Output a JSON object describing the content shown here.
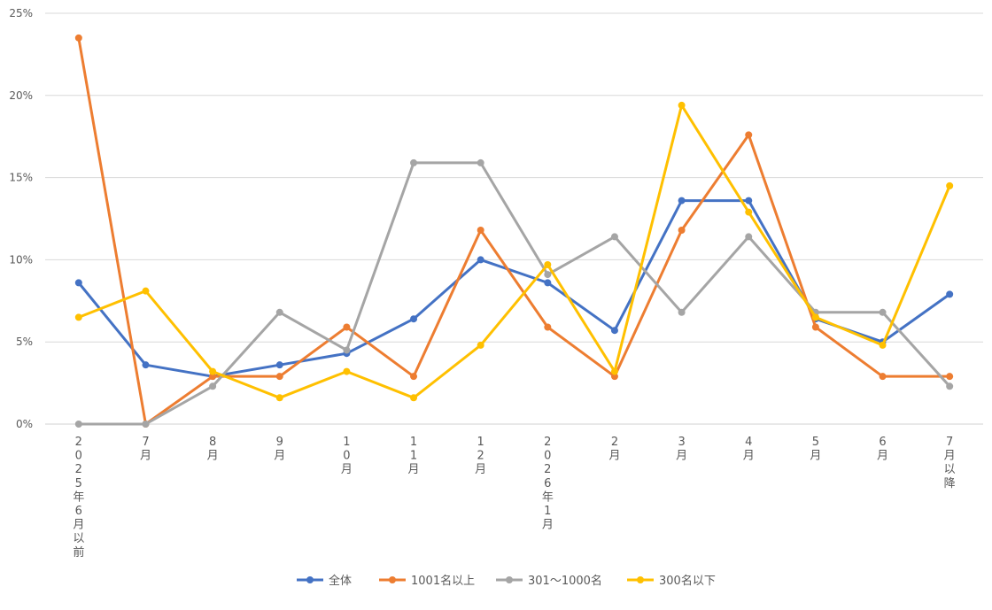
{
  "chart_data": {
    "type": "line",
    "title": "",
    "xlabel": "",
    "ylabel": "",
    "ylim": [
      0,
      25
    ],
    "yticks": [
      "0%",
      "5%",
      "10%",
      "15%",
      "20%",
      "25%"
    ],
    "ytick_values": [
      0,
      5,
      10,
      15,
      20,
      25
    ],
    "grid": true,
    "legend_position": "bottom",
    "categories": [
      "2025年6月以前",
      "7月",
      "8月",
      "9月",
      "10月",
      "11月",
      "12月",
      "2026年1月",
      "2月",
      "3月",
      "4月",
      "5月",
      "6月",
      "7月以降"
    ],
    "series": [
      {
        "name": "全体",
        "color": "#4472C4",
        "values": [
          8.6,
          3.6,
          2.9,
          3.6,
          4.3,
          6.4,
          10.0,
          8.6,
          5.7,
          13.6,
          13.6,
          6.4,
          5.0,
          7.9
        ]
      },
      {
        "name": "1001名以上",
        "color": "#ED7D31",
        "values": [
          23.5,
          0.0,
          2.9,
          2.9,
          5.9,
          2.9,
          11.8,
          5.9,
          2.9,
          11.8,
          17.6,
          5.9,
          2.9,
          2.9
        ]
      },
      {
        "name": "301〜1000名",
        "color": "#A5A5A5",
        "values": [
          0.0,
          0.0,
          2.3,
          6.8,
          4.5,
          15.9,
          15.9,
          9.1,
          11.4,
          6.8,
          11.4,
          6.8,
          6.8,
          2.3
        ]
      },
      {
        "name": "300名以下",
        "color": "#FFC000",
        "values": [
          6.5,
          8.1,
          3.2,
          1.6,
          3.2,
          1.6,
          4.8,
          9.7,
          3.2,
          19.4,
          12.9,
          6.5,
          4.8,
          14.5
        ]
      }
    ]
  }
}
